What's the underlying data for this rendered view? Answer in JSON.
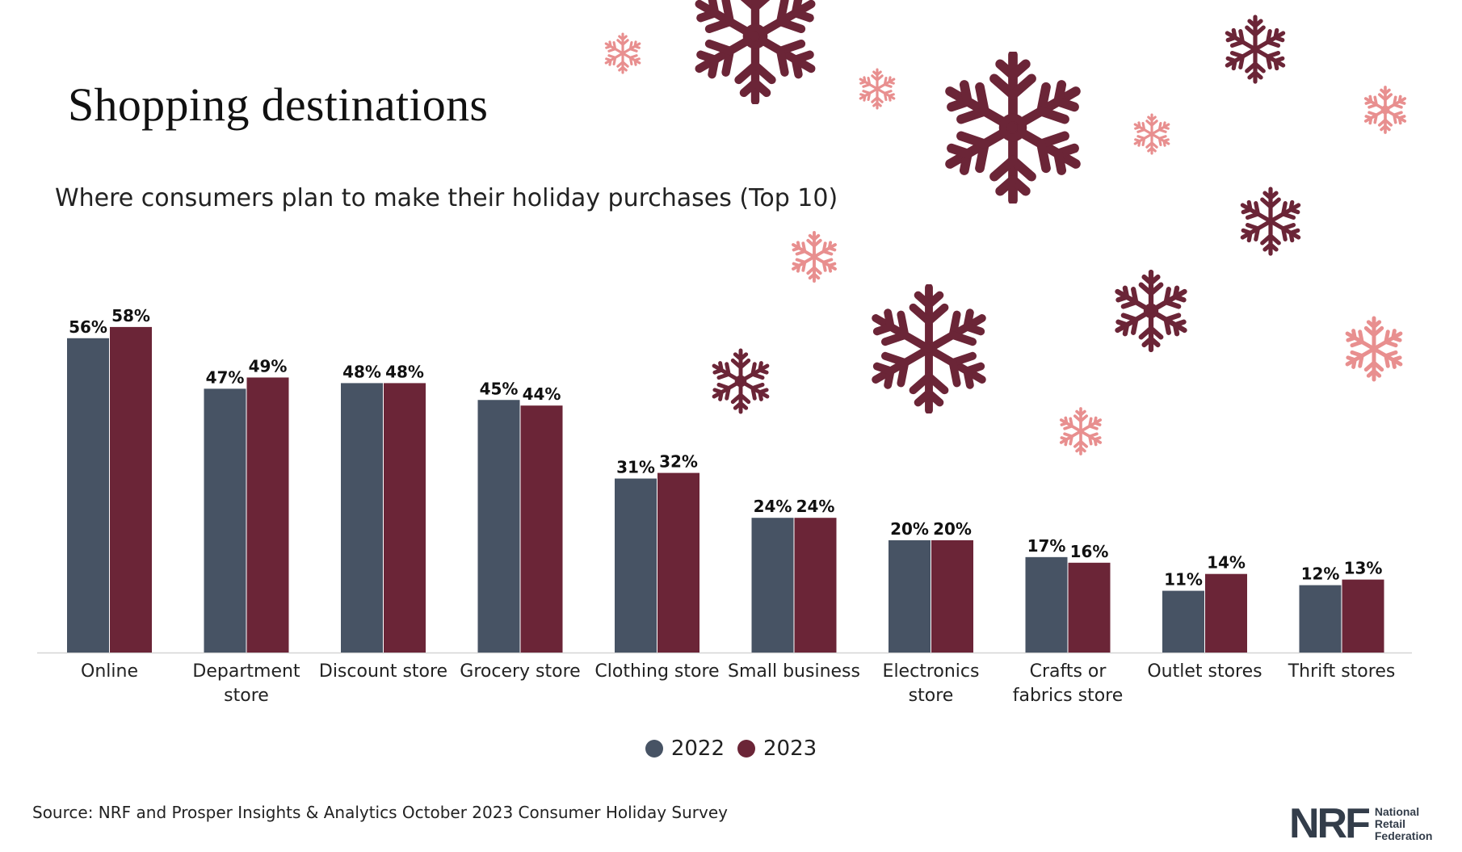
{
  "title": "Shopping destinations",
  "subtitle": "Where consumers plan to make their holiday purchases (Top 10)",
  "colors": {
    "series_2022": "#475364",
    "series_2023": "#6b2537",
    "flake_dark": "#6b2537",
    "flake_light": "#e88f8f"
  },
  "legend": [
    {
      "label": "2022",
      "color": "#475364"
    },
    {
      "label": "2023",
      "color": "#6b2537"
    }
  ],
  "source": "Source: NRF and Prosper Insights & Analytics October 2023 Consumer Holiday Survey",
  "logo": {
    "mark": "NRF",
    "line1": "National",
    "line2": "Retail",
    "line3": "Federation"
  },
  "chart_data": {
    "type": "bar",
    "categories": [
      "Online",
      "Department store",
      "Discount store",
      "Grocery store",
      "Clothing store",
      "Small business",
      "Electronics store",
      "Crafts or fabrics store",
      "Outlet stores",
      "Thrift stores"
    ],
    "category_lines": [
      [
        "Online"
      ],
      [
        "Department",
        "store"
      ],
      [
        "Discount store"
      ],
      [
        "Grocery store"
      ],
      [
        "Clothing store"
      ],
      [
        "Small business"
      ],
      [
        "Electronics",
        "store"
      ],
      [
        "Crafts or",
        "fabrics store"
      ],
      [
        "Outlet stores"
      ],
      [
        "Thrift stores"
      ]
    ],
    "series": [
      {
        "name": "2022",
        "values": [
          56,
          47,
          48,
          45,
          31,
          24,
          20,
          17,
          11,
          12
        ]
      },
      {
        "name": "2023",
        "values": [
          58,
          49,
          48,
          44,
          32,
          24,
          20,
          16,
          14,
          13
        ]
      }
    ],
    "value_suffix": "%",
    "ylim": [
      0,
      60
    ],
    "legend_position": "bottom-center",
    "grid": false
  }
}
